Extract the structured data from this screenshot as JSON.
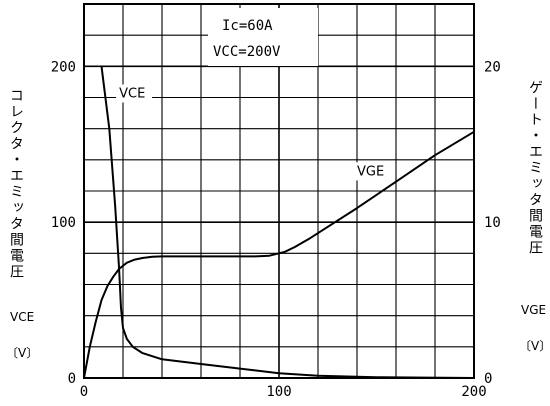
{
  "chart_data": {
    "type": "line",
    "left_axis": {
      "ticks": [
        "0",
        "100",
        "200"
      ],
      "label": "コレクタ・エミッタ間電圧",
      "symbol": "VCE",
      "unit": "〔V〕",
      "range": [
        0,
        240
      ]
    },
    "right_axis": {
      "ticks": [
        "0",
        "10",
        "20"
      ],
      "label": "ゲート・エミッタ間電圧",
      "symbol": "VGE",
      "unit": "〔V〕",
      "range": [
        0,
        24
      ]
    },
    "x_axis": {
      "ticks": [
        "0",
        "100",
        "200"
      ],
      "range": [
        0,
        200
      ]
    },
    "conditions": [
      "Ic=60A",
      "VCC=200V"
    ],
    "grid": true,
    "series": [
      {
        "name": "VCE",
        "axis": "left",
        "x": [
          9,
          13,
          16,
          18,
          19,
          20,
          22,
          25,
          30,
          40,
          60,
          80,
          100,
          120,
          150,
          200
        ],
        "y": [
          200,
          160,
          110,
          70,
          45,
          32,
          25,
          20,
          16,
          12,
          9,
          6,
          3,
          1.5,
          0.5,
          0
        ]
      },
      {
        "name": "VGE",
        "axis": "right",
        "x": [
          0,
          3,
          6,
          9,
          12,
          15,
          18,
          22,
          26,
          30,
          35,
          40,
          50,
          60,
          70,
          80,
          88,
          95,
          100,
          103,
          108,
          115,
          125,
          140,
          160,
          180,
          200
        ],
        "y": [
          0,
          2,
          3.6,
          5,
          5.9,
          6.5,
          7.0,
          7.4,
          7.6,
          7.7,
          7.78,
          7.8,
          7.8,
          7.8,
          7.8,
          7.8,
          7.8,
          7.85,
          8.0,
          8.1,
          8.4,
          8.9,
          9.7,
          10.9,
          12.6,
          14.3,
          15.8
        ]
      }
    ]
  }
}
